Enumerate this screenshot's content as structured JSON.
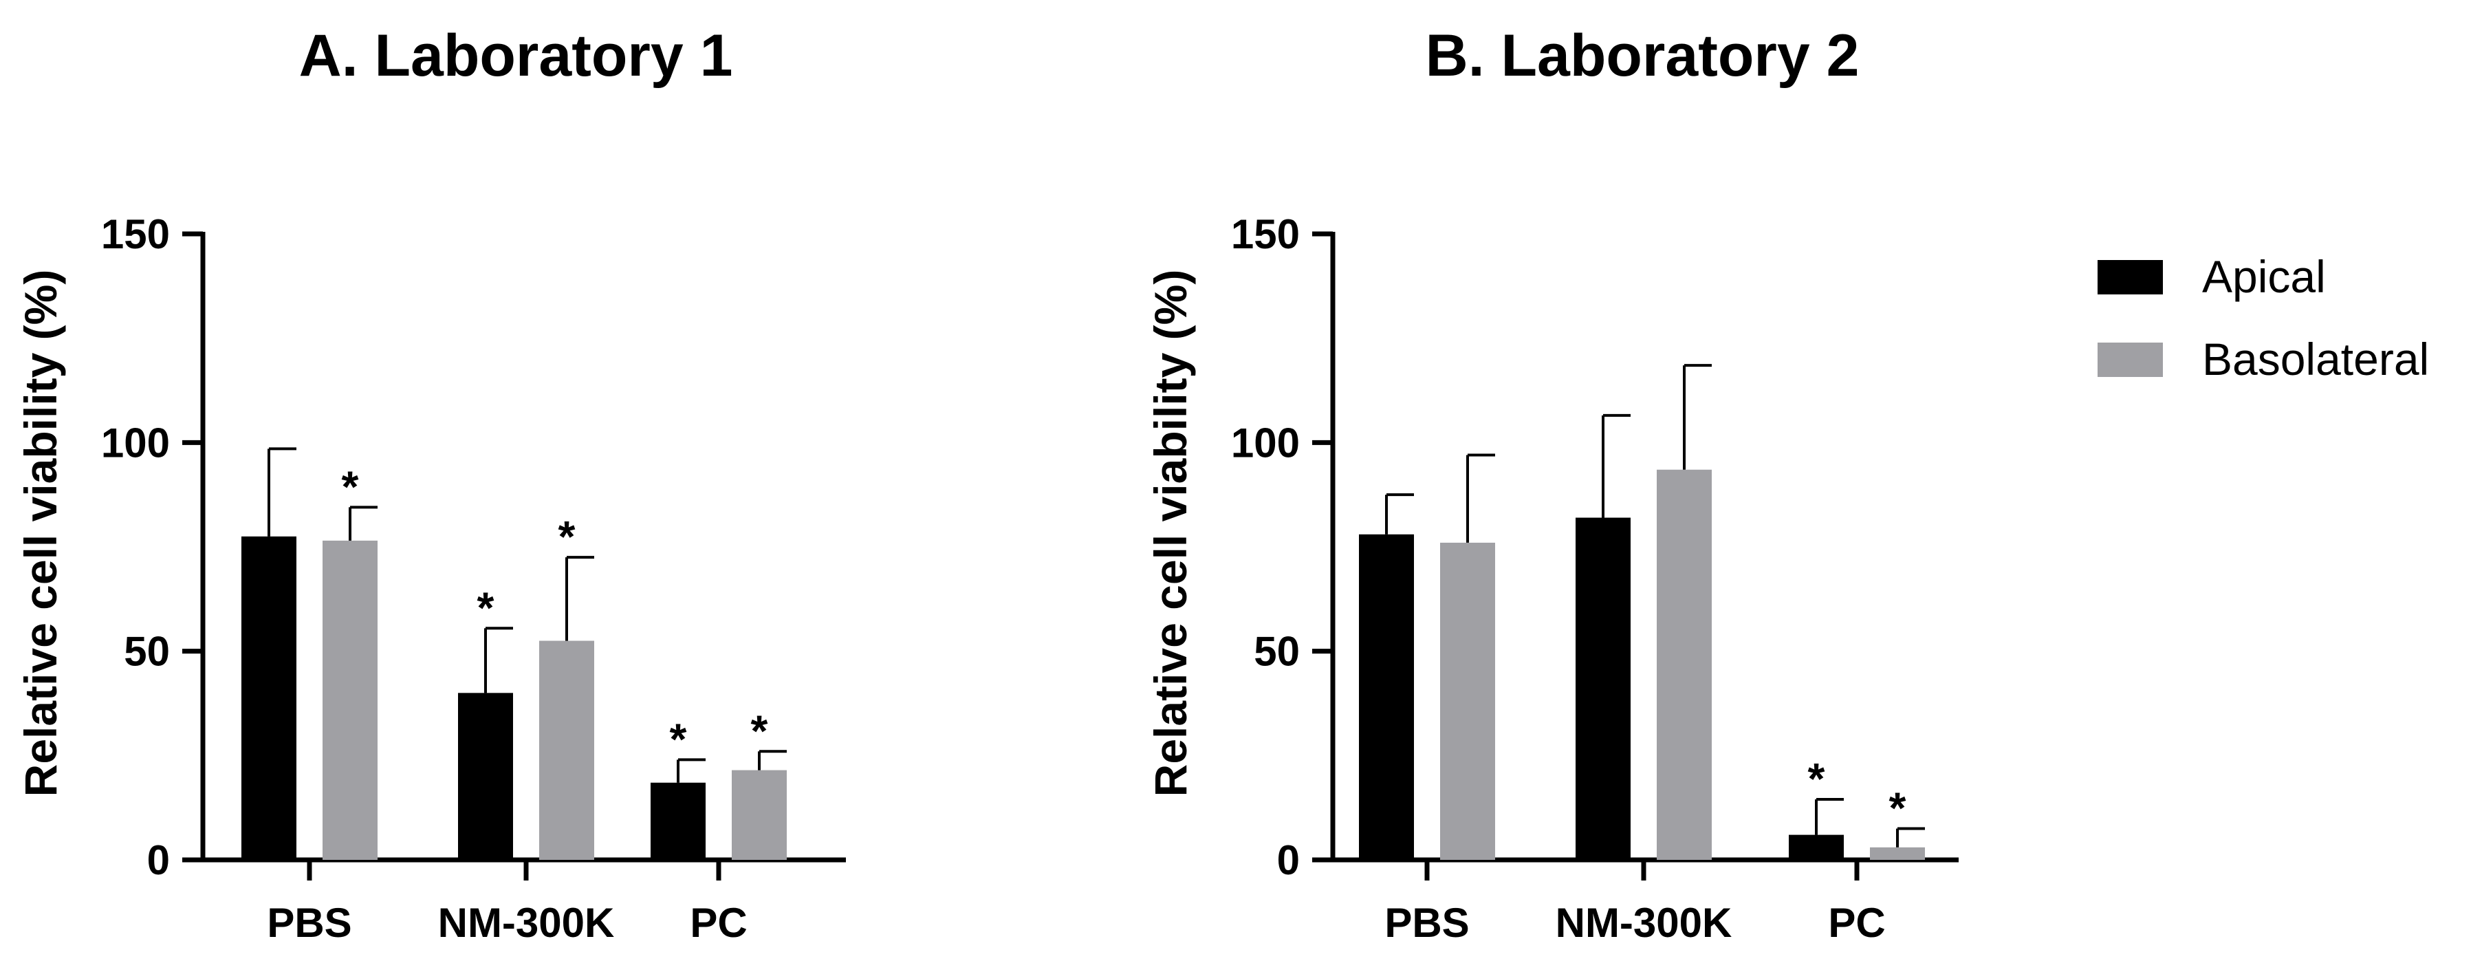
{
  "chart_data": [
    {
      "type": "bar",
      "title": "A. Laboratory 1",
      "xlabel": "",
      "ylabel": "Relative cell viability (%)",
      "ylim": [
        0,
        150
      ],
      "yticks": [
        "0",
        "50",
        "100",
        "150"
      ],
      "categories": [
        "PBS",
        "NM-300K",
        "PC"
      ],
      "series": [
        {
          "name": "Apical",
          "color": "#000000",
          "values": [
            77.5,
            40,
            18.5
          ],
          "errors": [
            21,
            15.5,
            5.5
          ],
          "significant": [
            false,
            true,
            true
          ]
        },
        {
          "name": "Basolateral",
          "color": "#a0a0a4",
          "values": [
            76.5,
            52.5,
            21.5
          ],
          "errors": [
            8,
            20,
            4.5
          ],
          "significant": [
            true,
            true,
            true
          ]
        }
      ],
      "significance_mark": "*"
    },
    {
      "type": "bar",
      "title": "B. Laboratory 2",
      "xlabel": "",
      "ylabel": "Relative cell viability (%)",
      "ylim": [
        0,
        150
      ],
      "yticks": [
        "0",
        "50",
        "100",
        "150"
      ],
      "categories": [
        "PBS",
        "NM-300K",
        "PC"
      ],
      "series": [
        {
          "name": "Apical",
          "color": "#000000",
          "values": [
            78,
            82,
            6
          ],
          "errors": [
            9.5,
            24.5,
            8.5
          ],
          "significant": [
            false,
            false,
            true
          ]
        },
        {
          "name": "Basolateral",
          "color": "#a0a0a4",
          "values": [
            76,
            93.5,
            3
          ],
          "errors": [
            21,
            25,
            4.5
          ],
          "significant": [
            false,
            false,
            true
          ]
        }
      ],
      "significance_mark": "*"
    }
  ],
  "legend": {
    "position": "right",
    "items": [
      {
        "label": "Apical",
        "color": "#000000"
      },
      {
        "label": "Basolateral",
        "color": "#a0a0a4"
      }
    ]
  }
}
